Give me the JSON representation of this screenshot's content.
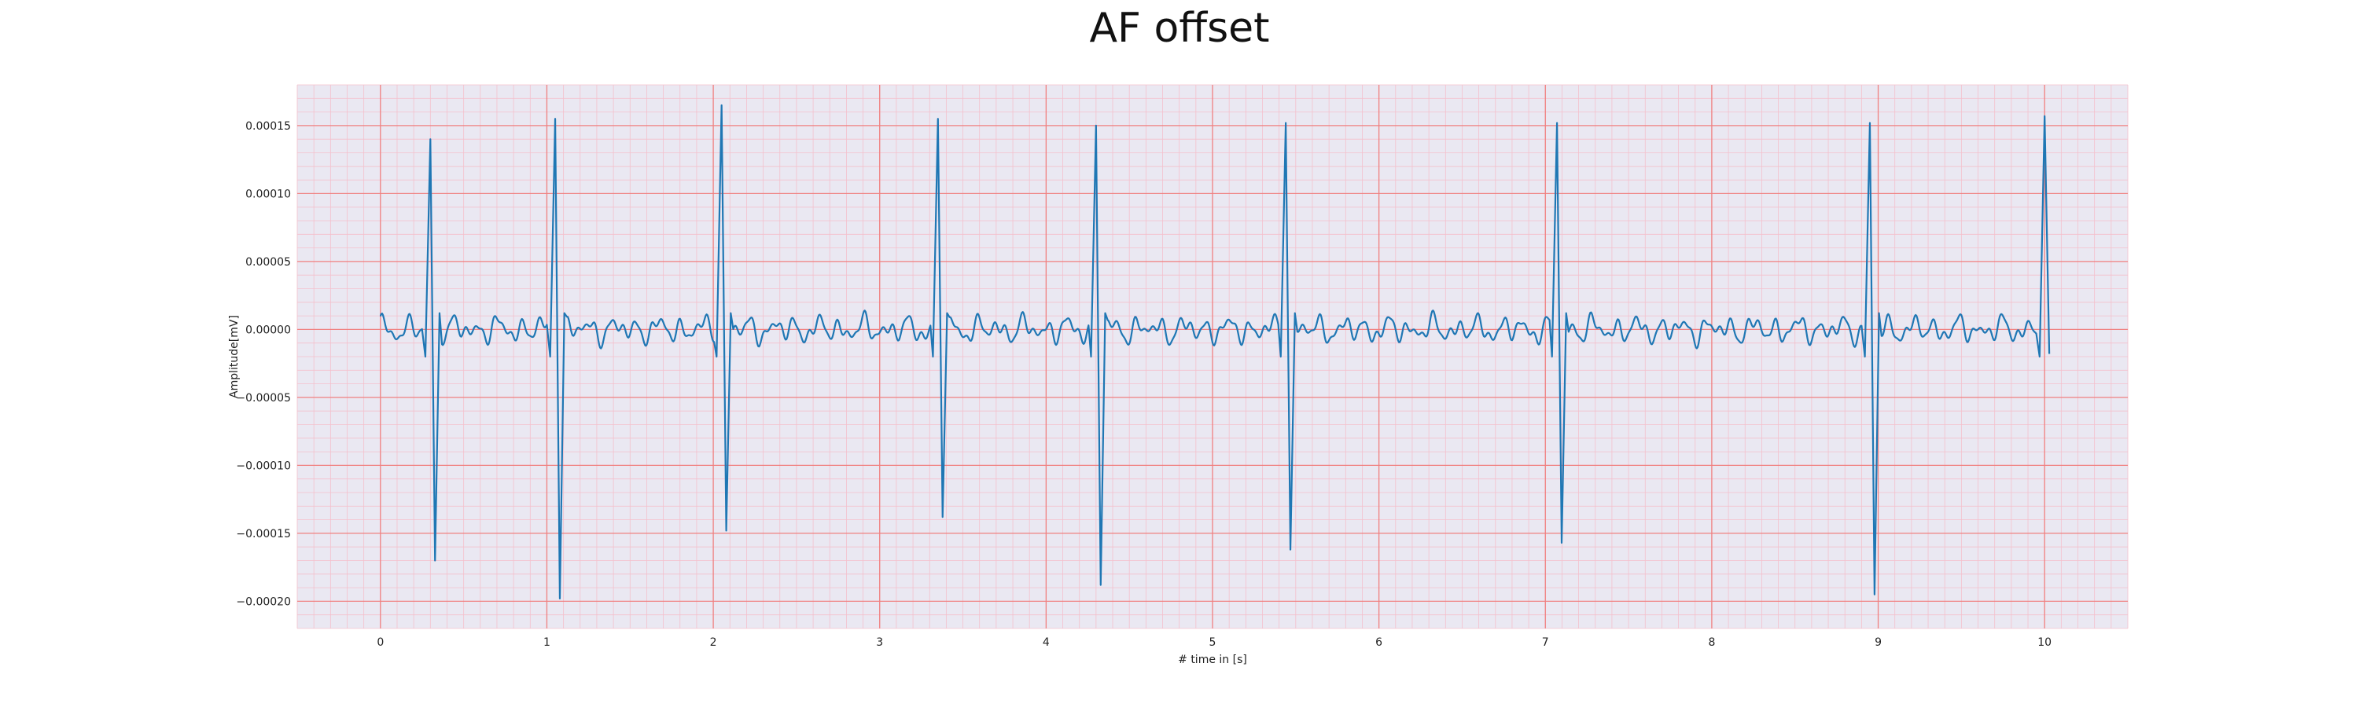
{
  "chart_data": {
    "type": "line",
    "title": "AF offset",
    "xlabel": "# time in [s]",
    "ylabel": "Amplitude[mV]",
    "xlim": [
      -0.5,
      10.5
    ],
    "ylim": [
      -0.00022,
      0.00018
    ],
    "x_ticks": [
      "0",
      "1",
      "2",
      "3",
      "4",
      "5",
      "6",
      "7",
      "8",
      "9",
      "10"
    ],
    "y_ticks": [
      "0.00015",
      "0.00010",
      "0.00005",
      "0.00000",
      "−0.00005",
      "−0.00010",
      "−0.00015",
      "−0.00020"
    ],
    "grid": true,
    "minor_grid": true,
    "legend": "none",
    "colors": {
      "plot_background": "#eae8f2",
      "major_grid": "#f08080",
      "minor_grid": "#f4c0cc",
      "series": "#1f77b4"
    },
    "series": [
      {
        "description": "ECG trace, 10 s",
        "beats": [
          {
            "t": 0.3,
            "r_peak": 0.00014,
            "s_trough": -0.00017
          },
          {
            "t": 1.05,
            "r_peak": 0.000155,
            "s_trough": -0.000198
          },
          {
            "t": 2.05,
            "r_peak": 0.000165,
            "s_trough": -0.000148
          },
          {
            "t": 3.35,
            "r_peak": 0.000155,
            "s_trough": -0.000138
          },
          {
            "t": 4.3,
            "r_peak": 0.00015,
            "s_trough": -0.000188
          },
          {
            "t": 5.44,
            "r_peak": 0.000152,
            "s_trough": -0.000162
          },
          {
            "t": 7.07,
            "r_peak": 0.000152,
            "s_trough": -0.000157
          },
          {
            "t": 8.95,
            "r_peak": 0.000152,
            "s_trough": -0.000195
          },
          {
            "t": 10.0,
            "r_peak": 0.000157,
            "s_trough": -1.8e-05
          }
        ],
        "baseline_noise_amplitude": 1.2e-05
      }
    ]
  }
}
